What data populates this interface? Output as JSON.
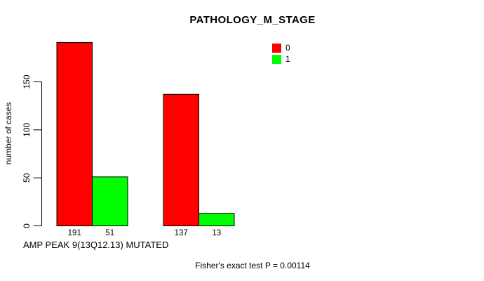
{
  "chart_data": {
    "type": "bar",
    "title": "PATHOLOGY_M_STAGE",
    "xlabel": "AMP PEAK 9(13Q12.13) MUTATED",
    "ylabel": "number of cases",
    "ylim": [
      0,
      200
    ],
    "yticks": [
      0,
      50,
      100,
      150
    ],
    "grid": false,
    "legend_position": "top-right-inside",
    "categories": [
      "",
      ""
    ],
    "series": [
      {
        "name": "0",
        "color": "#ff0000",
        "values": [
          191,
          137
        ]
      },
      {
        "name": "1",
        "color": "#00ff00",
        "values": [
          51,
          13
        ]
      }
    ],
    "bar_value_labels": [
      191,
      51,
      137,
      13
    ],
    "annotation": "Fisher's exact test P = 0.00114"
  }
}
